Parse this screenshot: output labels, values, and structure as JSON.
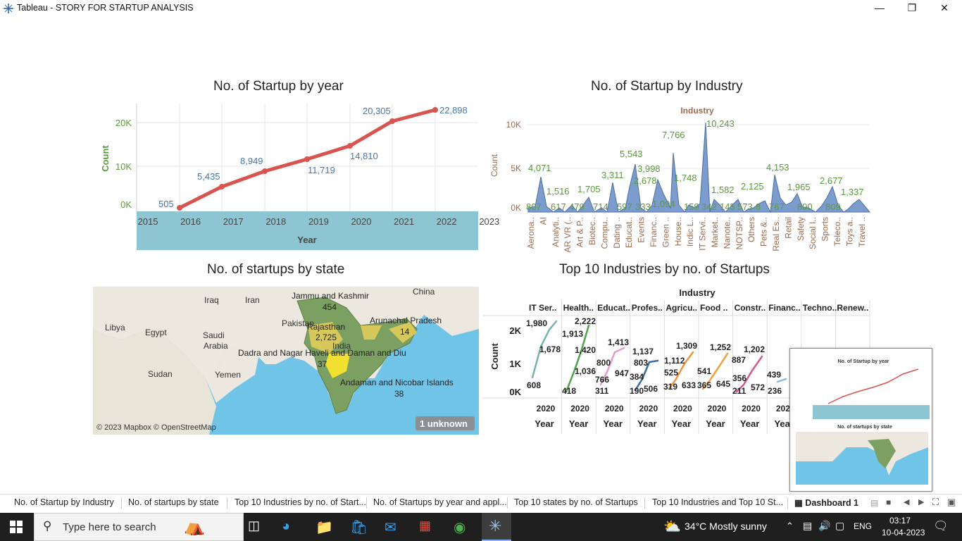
{
  "window": {
    "title": "Tableau - STORY  FOR STARTUP ANALYSIS",
    "minimize": "—",
    "restore": "❐",
    "close": "✕"
  },
  "colors": {
    "line_red": "#d9534f",
    "axis_band": "#8ec5d2",
    "industry_area": "#7b9ccc",
    "green_label": "#5b9a3c",
    "blue_label": "#4a78b0",
    "brown_label": "#9c6b4d",
    "map_water": "#6fc4e8",
    "map_land": "#ece8df",
    "state_green": "#7c9f62",
    "state_yellow": "#d6c85a",
    "state_bright": "#f2e030",
    "taskbar_bg": "#1f1f1f"
  },
  "chart_year": {
    "title": "No. of Startup by year",
    "ylabel": "Count",
    "xlabel": "Year",
    "yticks": [
      "20K",
      "10K",
      "0K"
    ],
    "xticks": [
      "2015",
      "2016",
      "2017",
      "2018",
      "2019",
      "2020",
      "2021",
      "2022",
      "2023"
    ],
    "point_labels": [
      "505",
      "5,435",
      "8,949",
      "11,719",
      "14,810",
      "20,305",
      "22,898"
    ]
  },
  "chart_industry": {
    "title": "No. of Startup by Industry",
    "header": "Industry",
    "ylabel": "Count",
    "yticks": [
      "10K",
      "5K",
      "0K"
    ],
    "categories": [
      "Aerona..",
      "AI",
      "Analyti..",
      "AR VR (..",
      "Art & P..",
      "Biotec..",
      "Compu..",
      "Dating ..",
      "Educat..",
      "Events",
      "Financ..",
      "Green ..",
      "House..",
      "Indic L..",
      "IT Servi..",
      "Market..",
      "Nanote..",
      "NOTSP..",
      "Others",
      "Pets &..",
      "Real Es..",
      "Retail",
      "Safety",
      "Social I..",
      "Sports",
      "Teleco..",
      "Toys a..",
      "Travel .."
    ],
    "value_labels": [
      "807",
      "4,071",
      "617",
      "1,516",
      "479",
      "1,705",
      "714",
      "3,311",
      "597",
      "5,543",
      "333",
      "3,998",
      "2,678",
      "1,094",
      "7,766",
      "1,748",
      "159",
      "10,243",
      "342",
      "1,582",
      "145",
      "573",
      "2,125",
      "8",
      "4,153",
      "767",
      "1,965",
      "890",
      "2,677",
      "809",
      "1,337"
    ]
  },
  "map": {
    "title": "No. of startups by state",
    "places": [
      "China",
      "Iraq",
      "Iran",
      "Libya",
      "Egypt",
      "Saudi",
      "Arabia",
      "Pakistan",
      "Sudan",
      "Yemen",
      "India"
    ],
    "states": [
      {
        "name": "Jammu and Kashmir",
        "value": "454"
      },
      {
        "name": "Rajasthan",
        "value": "2,725"
      },
      {
        "name": "Arunachal Pradesh",
        "value": "14"
      },
      {
        "name": "Dadra and Nagar Haveli and Daman and Diu",
        "value": "37"
      },
      {
        "name": "Andaman and Nicobar Islands",
        "value": "38"
      }
    ],
    "attribution": "© 2023 Mapbox © OpenStreetMap",
    "unknown_badge": "1 unknown"
  },
  "chart_top10": {
    "title": "Top 10 Industries by no. of Startups",
    "header": "Industry",
    "ylabel": "Count",
    "yticks": [
      "2K",
      "1K",
      "0K"
    ],
    "columns": [
      "IT Ser..",
      "Health..",
      "Educat..",
      "Profes..",
      "Agricu..",
      "Food ..",
      "Constr..",
      "Financ..",
      "Techno..",
      "Renew.."
    ],
    "year_tick": "2020",
    "year_label": "Year",
    "labels": [
      [
        "1,980",
        "1,678",
        "608"
      ],
      [
        "2,222",
        "1,913",
        "1,420",
        "1,036",
        "418"
      ],
      [
        "1,413",
        "800",
        "947",
        "766",
        "311"
      ],
      [
        "1,137",
        "803",
        "384",
        "506",
        "190"
      ],
      [
        "1,309",
        "1,112",
        "525",
        "633",
        "319"
      ],
      [
        "1,252",
        "541",
        "365",
        "645"
      ],
      [
        "1,202",
        "887",
        "356",
        "572",
        "211"
      ],
      [
        "439",
        "236"
      ]
    ]
  },
  "overlay": {
    "title1": "No. of Startup by year",
    "title2": "No. of startups by state"
  },
  "tabs": [
    "No. of Startup by Industry",
    "No. of startups by state",
    "Top 10 Industries by no. of Start...",
    "No. of Startups by year and appl...",
    "Top 10 states by no. of Startups",
    "Top 10 Industries and Top 10 St...",
    "Dashboard 1"
  ],
  "taskbar": {
    "search_placeholder": "Type here to search",
    "weather": "34°C  Mostly sunny",
    "lang": "ENG",
    "time": "03:17",
    "date": "10-04-2023"
  }
}
